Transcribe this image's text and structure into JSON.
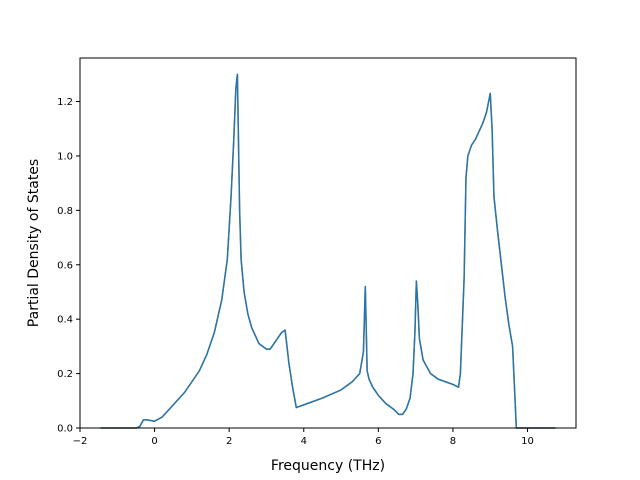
{
  "chart_data": {
    "type": "line",
    "title": "",
    "xlabel": "Frequency (THz)",
    "ylabel": "Partial Density of States",
    "xlim": [
      -2.0,
      11.3
    ],
    "ylim": [
      0.0,
      1.36
    ],
    "xticks": [
      -2,
      0,
      2,
      4,
      6,
      8,
      10
    ],
    "yticks": [
      0.0,
      0.2,
      0.4,
      0.6,
      0.8,
      1.0,
      1.2
    ],
    "xtick_labels": [
      "−2",
      "0",
      "2",
      "4",
      "6",
      "8",
      "10"
    ],
    "ytick_labels": [
      "0.0",
      "0.2",
      "0.4",
      "0.6",
      "0.8",
      "1.0",
      "1.2"
    ],
    "grid": false,
    "legend": "none",
    "series": [
      {
        "color": "#ff7f0e",
        "x": [
          -1.45,
          -1.0,
          -0.5,
          -0.4,
          -0.3,
          -0.2,
          0.0,
          0.2,
          0.4,
          0.6,
          0.8,
          1.0,
          1.2,
          1.4,
          1.6,
          1.8,
          1.95,
          2.05,
          2.12,
          2.18,
          2.22,
          2.25,
          2.28,
          2.32,
          2.4,
          2.5,
          2.6,
          2.8,
          3.0,
          3.1,
          3.2,
          3.3,
          3.4,
          3.5,
          3.55,
          3.6,
          3.7,
          3.8,
          4.0,
          4.5,
          5.0,
          5.3,
          5.5,
          5.6,
          5.65,
          5.7,
          5.75,
          5.85,
          6.0,
          6.2,
          6.4,
          6.55,
          6.65,
          6.75,
          6.85,
          6.93,
          6.98,
          7.02,
          7.06,
          7.1,
          7.2,
          7.4,
          7.6,
          7.8,
          8.0,
          8.15,
          8.2,
          8.3,
          8.35,
          8.4,
          8.45,
          8.5,
          8.6,
          8.7,
          8.8,
          8.9,
          9.0,
          9.05,
          9.1,
          9.2,
          9.3,
          9.4,
          9.5,
          9.6,
          9.65,
          9.7,
          9.75,
          9.8,
          10.0,
          10.3,
          10.75
        ],
        "y": [
          0.0,
          0.0,
          0.0,
          0.005,
          0.03,
          0.03,
          0.025,
          0.04,
          0.07,
          0.1,
          0.13,
          0.17,
          0.21,
          0.27,
          0.35,
          0.47,
          0.62,
          0.85,
          1.05,
          1.25,
          1.3,
          1.05,
          0.8,
          0.62,
          0.5,
          0.42,
          0.37,
          0.31,
          0.29,
          0.29,
          0.31,
          0.33,
          0.35,
          0.36,
          0.3,
          0.24,
          0.15,
          0.075,
          0.085,
          0.11,
          0.14,
          0.17,
          0.2,
          0.28,
          0.52,
          0.21,
          0.18,
          0.15,
          0.12,
          0.09,
          0.07,
          0.05,
          0.05,
          0.07,
          0.11,
          0.2,
          0.35,
          0.54,
          0.45,
          0.33,
          0.25,
          0.2,
          0.18,
          0.17,
          0.16,
          0.15,
          0.2,
          0.55,
          0.92,
          1.0,
          1.02,
          1.04,
          1.06,
          1.09,
          1.12,
          1.16,
          1.23,
          1.1,
          0.85,
          0.72,
          0.6,
          0.48,
          0.38,
          0.3,
          0.15,
          0.0,
          0.0,
          0.0,
          0.0,
          0.0,
          0.0
        ]
      },
      {
        "color": "#1f77b4",
        "x": [
          -1.45,
          -1.0,
          -0.5,
          -0.4,
          -0.3,
          -0.2,
          0.0,
          0.2,
          0.4,
          0.6,
          0.8,
          1.0,
          1.2,
          1.4,
          1.6,
          1.8,
          1.95,
          2.05,
          2.12,
          2.18,
          2.22,
          2.25,
          2.28,
          2.32,
          2.4,
          2.5,
          2.6,
          2.8,
          3.0,
          3.1,
          3.2,
          3.3,
          3.4,
          3.5,
          3.55,
          3.6,
          3.7,
          3.8,
          4.0,
          4.5,
          5.0,
          5.3,
          5.5,
          5.6,
          5.65,
          5.7,
          5.75,
          5.85,
          6.0,
          6.2,
          6.4,
          6.55,
          6.65,
          6.75,
          6.85,
          6.93,
          6.98,
          7.02,
          7.06,
          7.1,
          7.2,
          7.4,
          7.6,
          7.8,
          8.0,
          8.15,
          8.2,
          8.3,
          8.35,
          8.4,
          8.45,
          8.5,
          8.6,
          8.7,
          8.8,
          8.9,
          9.0,
          9.05,
          9.1,
          9.2,
          9.3,
          9.4,
          9.5,
          9.6,
          9.65,
          9.7,
          9.75,
          9.8,
          10.0,
          10.3,
          10.75
        ],
        "y": [
          0.0,
          0.0,
          0.0,
          0.005,
          0.03,
          0.03,
          0.025,
          0.04,
          0.07,
          0.1,
          0.13,
          0.17,
          0.21,
          0.27,
          0.35,
          0.47,
          0.62,
          0.85,
          1.05,
          1.25,
          1.3,
          1.05,
          0.8,
          0.62,
          0.5,
          0.42,
          0.37,
          0.31,
          0.29,
          0.29,
          0.31,
          0.33,
          0.35,
          0.36,
          0.3,
          0.24,
          0.15,
          0.075,
          0.085,
          0.11,
          0.14,
          0.17,
          0.2,
          0.28,
          0.52,
          0.21,
          0.18,
          0.15,
          0.12,
          0.09,
          0.07,
          0.05,
          0.05,
          0.07,
          0.11,
          0.2,
          0.35,
          0.54,
          0.45,
          0.33,
          0.25,
          0.2,
          0.18,
          0.17,
          0.16,
          0.15,
          0.2,
          0.55,
          0.92,
          1.0,
          1.02,
          1.04,
          1.06,
          1.09,
          1.12,
          1.16,
          1.23,
          1.1,
          0.85,
          0.72,
          0.6,
          0.48,
          0.38,
          0.3,
          0.15,
          0.0,
          0.0,
          0.0,
          0.0,
          0.0,
          0.0
        ]
      }
    ]
  }
}
